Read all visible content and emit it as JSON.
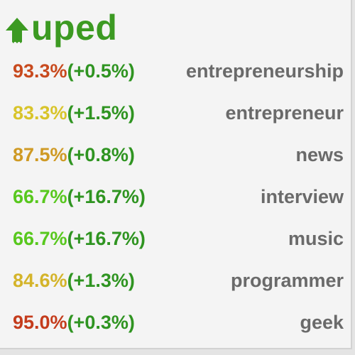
{
  "brand": {
    "name": "uped",
    "icon": "upvote-arrow-icon",
    "color": "#3c9a22"
  },
  "colors": {
    "delta": "#2f9421",
    "tag": "#6a6a6a"
  },
  "rows": [
    {
      "score": "93.3%",
      "delta": "(+0.5%)",
      "tag": "entrepreneurship",
      "score_color": "#c84a1e"
    },
    {
      "score": "83.3%",
      "delta": "(+1.5%)",
      "tag": "entrepreneur",
      "score_color": "#d8c42a"
    },
    {
      "score": "87.5%",
      "delta": "(+0.8%)",
      "tag": "news",
      "score_color": "#cf9a24"
    },
    {
      "score": "66.7%",
      "delta": "(+16.7%)",
      "tag": "interview",
      "score_color": "#58c81e"
    },
    {
      "score": "66.7%",
      "delta": "(+16.7%)",
      "tag": "music",
      "score_color": "#58c81e"
    },
    {
      "score": "84.6%",
      "delta": "(+1.3%)",
      "tag": "programmer",
      "score_color": "#d4b42a"
    },
    {
      "score": "95.0%",
      "delta": "(+0.3%)",
      "tag": "geek",
      "score_color": "#c43c1c"
    }
  ]
}
